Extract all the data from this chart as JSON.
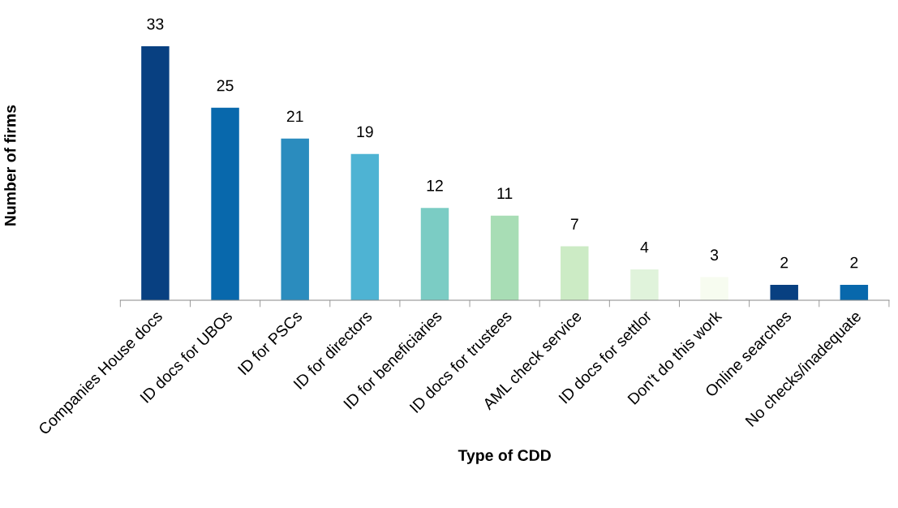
{
  "chart_data": {
    "type": "bar",
    "xlabel": "Type of CDD",
    "ylabel": "Number of firms",
    "categories": [
      "Companies House docs",
      "ID docs for UBOs",
      "ID for PSCs",
      "ID for directors",
      "ID for beneficiaries",
      "ID docs for trustees",
      "AML check service",
      "ID docs for settlor",
      "Don't do this work",
      "Online searches",
      "No checks/inadequate"
    ],
    "values": [
      33,
      25,
      21,
      19,
      12,
      11,
      7,
      4,
      3,
      2,
      2
    ],
    "colors": [
      "#084081",
      "#0868ac",
      "#2b8cbe",
      "#4eb3d3",
      "#7bccc4",
      "#a8ddb5",
      "#ccebc5",
      "#e0f3db",
      "#f7fcf0",
      "#084081",
      "#0868ac"
    ],
    "tick_labels": "x",
    "data_labels": true,
    "grid": false,
    "legend": false
  }
}
